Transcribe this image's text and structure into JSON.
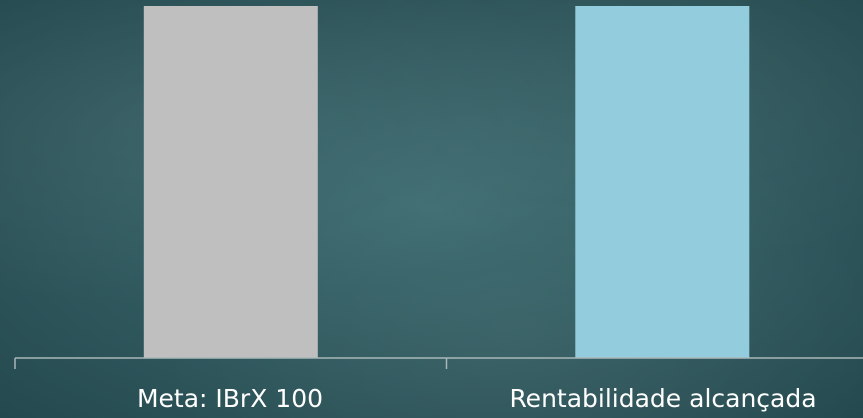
{
  "chart_data": {
    "type": "bar",
    "categories": [
      "Meta: IBrX 100",
      "Rentabilidade alcançada"
    ],
    "values": [
      1,
      1
    ],
    "colors": [
      "#bfbfbf",
      "#93cddd"
    ],
    "axis_color": "#a9b7b9",
    "grid": false
  }
}
